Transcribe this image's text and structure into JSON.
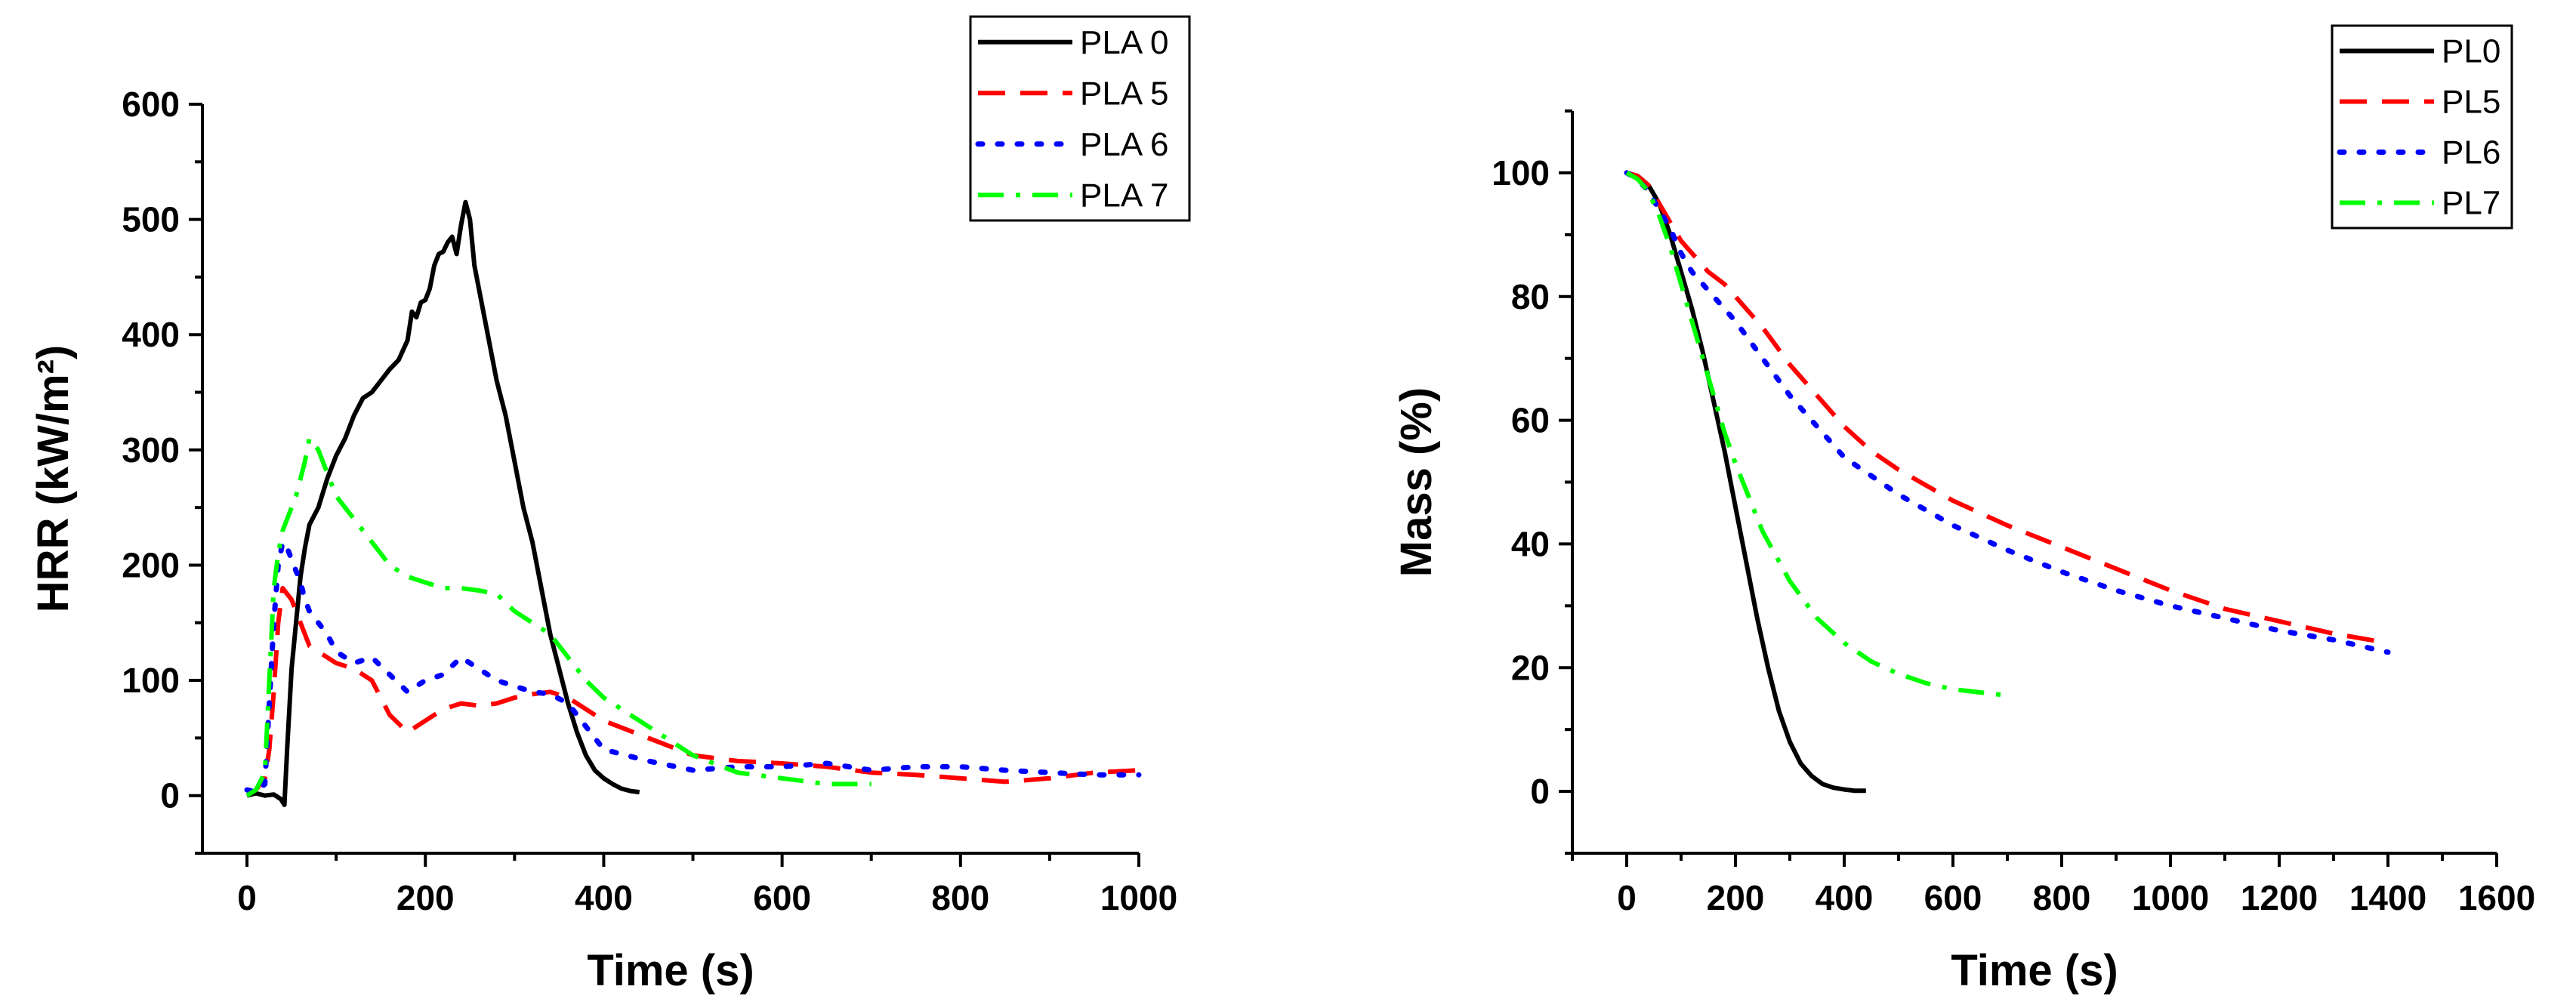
{
  "chart_data": [
    {
      "type": "line",
      "xlabel": "Time (s)",
      "ylabel": "HRR (kW/m²)",
      "xlim": [
        -50,
        1000
      ],
      "ylim": [
        -50,
        600
      ],
      "xticks": [
        0,
        200,
        400,
        600,
        800,
        1000
      ],
      "yticks": [
        0,
        100,
        200,
        300,
        400,
        500,
        600
      ],
      "x_minor_step": 100,
      "y_minor_step": 50,
      "legend_position": "top-right",
      "series": [
        {
          "name": "PLA 0",
          "color": "#000000",
          "dash": "solid",
          "x": [
            0,
            10,
            20,
            30,
            38,
            42,
            45,
            50,
            55,
            60,
            65,
            70,
            80,
            90,
            100,
            110,
            120,
            130,
            140,
            150,
            160,
            170,
            180,
            185,
            190,
            195,
            200,
            205,
            210,
            215,
            220,
            225,
            230,
            235,
            240,
            245,
            250,
            255,
            260,
            265,
            270,
            280,
            290,
            300,
            310,
            320,
            330,
            340,
            350,
            360,
            370,
            380,
            390,
            400,
            410,
            420,
            430,
            440
          ],
          "y": [
            0,
            2,
            0,
            1,
            -3,
            -8,
            40,
            110,
            150,
            190,
            215,
            235,
            250,
            275,
            295,
            310,
            330,
            345,
            350,
            360,
            370,
            378,
            395,
            420,
            415,
            428,
            430,
            440,
            460,
            470,
            472,
            480,
            485,
            470,
            495,
            515,
            500,
            460,
            440,
            420,
            400,
            360,
            330,
            290,
            250,
            220,
            180,
            140,
            110,
            80,
            55,
            35,
            22,
            15,
            10,
            6,
            4,
            3
          ]
        },
        {
          "name": "PLA 5",
          "color": "#ff0000",
          "dash": "dashed",
          "x": [
            0,
            10,
            20,
            25,
            30,
            35,
            40,
            45,
            50,
            55,
            60,
            65,
            70,
            80,
            90,
            100,
            120,
            140,
            160,
            180,
            200,
            220,
            240,
            260,
            280,
            300,
            320,
            340,
            360,
            380,
            400,
            450,
            500,
            550,
            600,
            650,
            700,
            750,
            800,
            850,
            900,
            950,
            1000
          ],
          "y": [
            0,
            5,
            15,
            40,
            90,
            150,
            180,
            175,
            170,
            160,
            150,
            140,
            130,
            125,
            120,
            115,
            110,
            100,
            70,
            55,
            65,
            75,
            80,
            78,
            80,
            85,
            88,
            90,
            85,
            75,
            65,
            50,
            35,
            30,
            28,
            25,
            20,
            18,
            15,
            12,
            15,
            20,
            22
          ]
        },
        {
          "name": "PLA 6",
          "color": "#0000ff",
          "dash": "dotted",
          "x": [
            0,
            10,
            20,
            25,
            30,
            35,
            40,
            45,
            50,
            55,
            60,
            65,
            70,
            80,
            90,
            100,
            120,
            140,
            160,
            180,
            200,
            220,
            240,
            260,
            280,
            300,
            320,
            340,
            360,
            380,
            400,
            450,
            500,
            550,
            600,
            650,
            700,
            750,
            800,
            850,
            900,
            950,
            1000
          ],
          "y": [
            5,
            3,
            10,
            80,
            150,
            200,
            220,
            215,
            205,
            195,
            185,
            170,
            160,
            150,
            140,
            125,
            115,
            120,
            105,
            90,
            100,
            105,
            120,
            110,
            100,
            95,
            90,
            88,
            80,
            60,
            40,
            30,
            22,
            25,
            25,
            28,
            22,
            25,
            25,
            22,
            20,
            18,
            18
          ]
        },
        {
          "name": "PLA 7",
          "color": "#00ff00",
          "dash": "dashdot",
          "x": [
            0,
            10,
            20,
            25,
            30,
            35,
            40,
            45,
            50,
            55,
            60,
            65,
            70,
            80,
            90,
            100,
            120,
            140,
            160,
            180,
            200,
            220,
            240,
            260,
            280,
            300,
            320,
            340,
            360,
            380,
            400,
            450,
            500,
            550,
            600,
            650,
            700
          ],
          "y": [
            0,
            5,
            20,
            100,
            180,
            210,
            230,
            240,
            250,
            260,
            275,
            290,
            310,
            300,
            280,
            260,
            240,
            220,
            200,
            190,
            185,
            180,
            180,
            178,
            175,
            160,
            150,
            140,
            120,
            100,
            85,
            60,
            35,
            20,
            15,
            10,
            10
          ]
        }
      ]
    },
    {
      "type": "line",
      "xlabel": "Time (s)",
      "ylabel": "Mass (%)",
      "xlim": [
        -100,
        1600
      ],
      "ylim": [
        -10,
        110
      ],
      "xticks": [
        0,
        200,
        400,
        600,
        800,
        1000,
        1200,
        1400,
        1600
      ],
      "yticks": [
        0,
        20,
        40,
        60,
        80,
        100
      ],
      "x_minor_step": 100,
      "y_minor_step": 10,
      "legend_position": "top-right",
      "series": [
        {
          "name": "PL0",
          "color": "#000000",
          "dash": "solid",
          "x": [
            0,
            20,
            40,
            60,
            80,
            100,
            120,
            140,
            160,
            180,
            200,
            220,
            240,
            260,
            280,
            300,
            320,
            340,
            360,
            380,
            400,
            420,
            440
          ],
          "y": [
            100,
            99.5,
            98,
            95,
            90,
            84,
            78,
            71,
            63,
            55,
            46,
            37,
            28,
            20,
            13,
            8,
            4.5,
            2.5,
            1.2,
            0.6,
            0.3,
            0.1,
            0.1
          ]
        },
        {
          "name": "PL5",
          "color": "#ff0000",
          "dash": "dashed",
          "x": [
            0,
            20,
            40,
            60,
            80,
            100,
            120,
            150,
            180,
            200,
            250,
            300,
            350,
            400,
            450,
            500,
            600,
            700,
            800,
            900,
            1000,
            1100,
            1200,
            1300,
            1400
          ],
          "y": [
            100,
            99.5,
            98,
            95,
            92,
            89,
            87,
            84,
            82,
            80,
            75,
            69,
            64,
            59,
            55,
            52,
            47,
            43,
            39.5,
            36,
            32.5,
            29.5,
            27.5,
            25.5,
            24
          ]
        },
        {
          "name": "PL6",
          "color": "#0000ff",
          "dash": "dotted",
          "x": [
            0,
            20,
            40,
            60,
            80,
            100,
            120,
            150,
            180,
            200,
            250,
            300,
            350,
            400,
            450,
            500,
            600,
            700,
            800,
            900,
            1000,
            1100,
            1200,
            1300,
            1400
          ],
          "y": [
            100,
            99,
            97,
            94,
            91,
            87,
            84,
            81,
            78,
            76,
            70,
            64,
            59,
            54,
            51,
            48,
            43,
            39,
            35.5,
            32.5,
            30,
            28,
            26,
            24.5,
            22.5
          ]
        },
        {
          "name": "PL7",
          "color": "#00ff00",
          "dash": "dashdot",
          "x": [
            0,
            20,
            40,
            60,
            80,
            100,
            120,
            140,
            160,
            180,
            200,
            250,
            300,
            350,
            400,
            450,
            500,
            550,
            600,
            650,
            700
          ],
          "y": [
            100,
            99,
            97,
            93,
            88,
            82,
            76,
            70,
            64,
            58,
            53,
            42,
            34,
            28,
            24,
            21,
            19,
            17.5,
            16.5,
            16,
            15.5
          ]
        }
      ]
    }
  ]
}
